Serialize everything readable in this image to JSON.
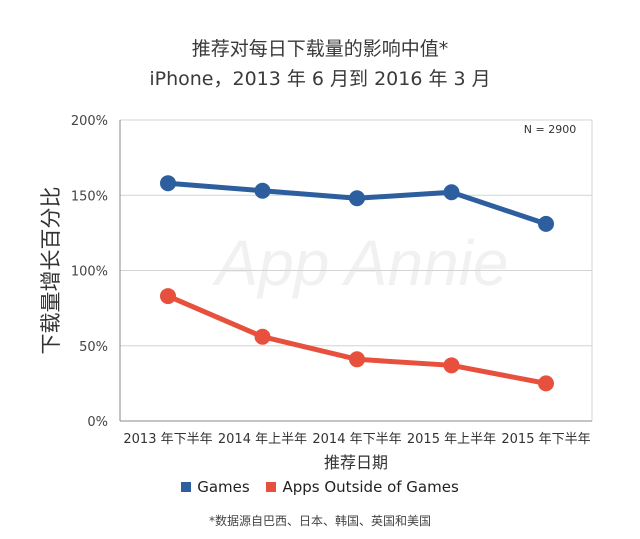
{
  "chart_data": {
    "type": "line",
    "title": "推荐对每日下载量的影响中值*",
    "subtitle": "iPhone，2013 年 6 月到 2016 年 3 月",
    "xlabel": "推荐日期",
    "ylabel": "下载量增长百分比",
    "categories": [
      "2013 年下半年",
      "2014 年上半年",
      "2014 年下半年",
      "2015 年上半年",
      "2015 年下半年"
    ],
    "yticks": [
      "0%",
      "50%",
      "100%",
      "150%",
      "200%"
    ],
    "ylim": [
      0,
      200
    ],
    "grid": true,
    "annotation": "N = 2900",
    "watermark": "App Annie",
    "legend_position": "bottom",
    "series": [
      {
        "name": "Games",
        "color": "#2d5f9e",
        "values": [
          158,
          153,
          148,
          152,
          131
        ]
      },
      {
        "name": "Apps Outside of Games",
        "color": "#e8503e",
        "values": [
          83,
          56,
          41,
          37,
          25
        ]
      }
    ],
    "footnote": "*数据源自巴西、日本、韩国、英国和美国"
  }
}
